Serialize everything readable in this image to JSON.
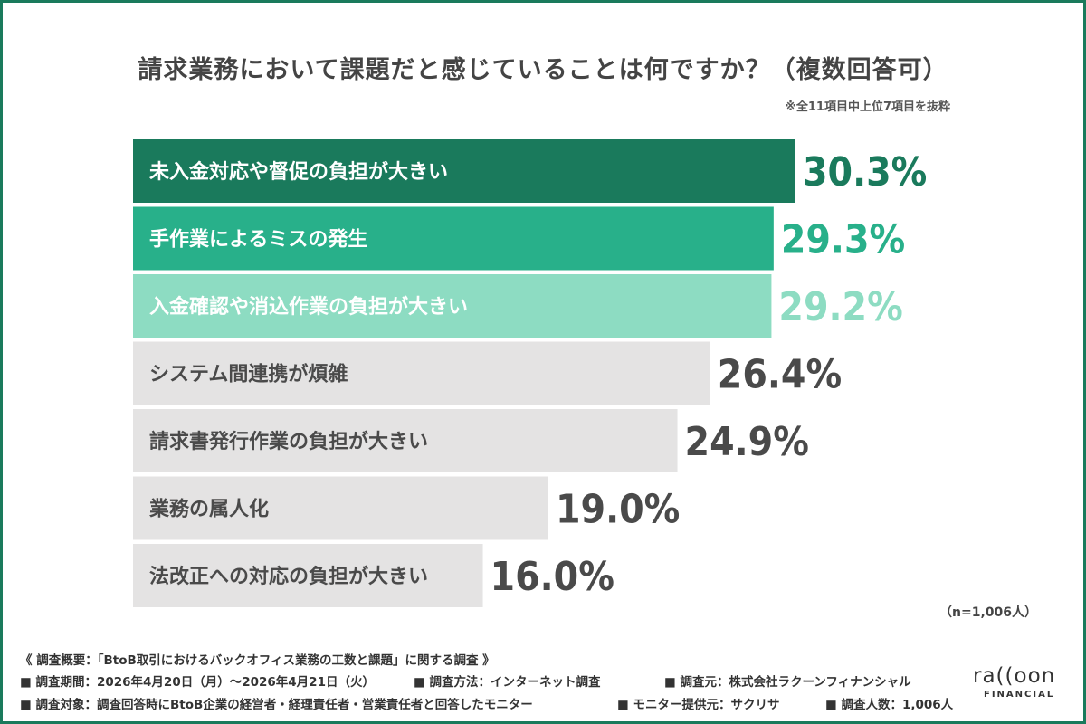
{
  "title": "請求業務において課題だと感じていることは何ですか？（複数回答可）",
  "note": "※全11項目中上位7項目を抜粋",
  "sample_note": "（n=1,006人）",
  "colors": {
    "frame": "#1a7a5c",
    "top1": "#1a7a5c",
    "top2": "#28b08a",
    "top3": "#8ddcc2",
    "rest": "#e4e3e3"
  },
  "chart_data": {
    "type": "bar",
    "orientation": "horizontal",
    "categories": [
      "未入金対応や督促の負担が大きい",
      "手作業によるミスの発生",
      "入金確認や消込作業の負担が大きい",
      "システム間連携が煩雑",
      "請求書発行作業の負担が大きい",
      "業務の属人化",
      "法改正への対応の負担が大きい"
    ],
    "values": [
      30.3,
      29.3,
      29.2,
      26.4,
      24.9,
      19.0,
      16.0
    ],
    "value_labels": [
      "30.3%",
      "29.3%",
      "29.2%",
      "26.4%",
      "24.9%",
      "19.0%",
      "16.0%"
    ],
    "unit": "%"
  },
  "footer": {
    "heading": "《 調査概要：「BtoB取引におけるバックオフィス業務の工数と課題」に関する調査 》",
    "period": "■ 調査期間：2026年4月20日（月）〜2026年4月21日（火）",
    "method": "■ 調査方法：インターネット調査",
    "source": "■ 調査元：株式会社ラクーンフィナンシャル",
    "target": "■ 調査対象：調査回答時にBtoB企業の経営者・経理責任者・営業責任者と回答したモニター",
    "provider": "■ モニター提供元：サクリサ",
    "count": "■ 調査人数：1,006人"
  },
  "logo": {
    "word": "ra((oon",
    "sub": "FINANCIAL"
  }
}
